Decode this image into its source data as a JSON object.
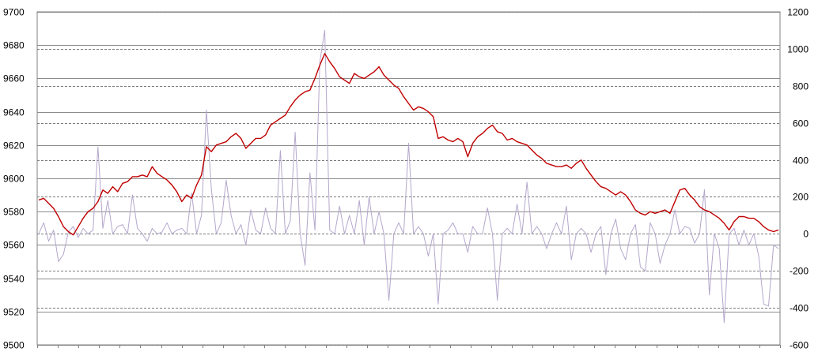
{
  "chart_data": {
    "type": "line",
    "title": "",
    "xlabel": "",
    "ylabel": "",
    "y_left": {
      "ylim": [
        9500,
        9700
      ],
      "ticks": [
        "9700",
        "9680",
        "9660",
        "9640",
        "9620",
        "9600",
        "9580",
        "9560",
        "9540",
        "9520",
        "9500"
      ]
    },
    "y_right": {
      "ylim": [
        -600,
        1200
      ],
      "ticks": [
        "1200",
        "1000",
        "800",
        "600",
        "400",
        "200",
        "0",
        "-200",
        "-400",
        "-600"
      ]
    },
    "grid": true,
    "legend": "none",
    "series": [
      {
        "axis": "left",
        "color": "#c00000",
        "points": [
          [
            0,
            9587
          ],
          [
            1,
            9588
          ],
          [
            2,
            9585
          ],
          [
            3,
            9582
          ],
          [
            4,
            9577
          ],
          [
            5,
            9571
          ],
          [
            6,
            9568
          ],
          [
            7,
            9566
          ],
          [
            8,
            9571
          ],
          [
            9,
            9576
          ],
          [
            10,
            9580
          ],
          [
            11,
            9582
          ],
          [
            12,
            9586
          ],
          [
            13,
            9593
          ],
          [
            14,
            9591
          ],
          [
            15,
            9595
          ],
          [
            16,
            9592
          ],
          [
            17,
            9597
          ],
          [
            18,
            9598
          ],
          [
            19,
            9601
          ],
          [
            20,
            9601
          ],
          [
            21,
            9602
          ],
          [
            22,
            9601
          ],
          [
            23,
            9607
          ],
          [
            24,
            9603
          ],
          [
            25,
            9601
          ],
          [
            26,
            9599
          ],
          [
            27,
            9596
          ],
          [
            28,
            9592
          ],
          [
            29,
            9586
          ],
          [
            30,
            9590
          ],
          [
            31,
            9588
          ],
          [
            32,
            9596
          ],
          [
            33,
            9602
          ],
          [
            34,
            9619
          ],
          [
            35,
            9616
          ],
          [
            36,
            9620
          ],
          [
            37,
            9621
          ],
          [
            38,
            9622
          ],
          [
            39,
            9625
          ],
          [
            40,
            9627
          ],
          [
            41,
            9624
          ],
          [
            42,
            9618
          ],
          [
            43,
            9621
          ],
          [
            44,
            9624
          ],
          [
            45,
            9624
          ],
          [
            46,
            9626
          ],
          [
            47,
            9632
          ],
          [
            48,
            9634
          ],
          [
            49,
            9636
          ],
          [
            50,
            9638
          ],
          [
            51,
            9643
          ],
          [
            52,
            9647
          ],
          [
            53,
            9650
          ],
          [
            54,
            9652
          ],
          [
            55,
            9653
          ],
          [
            56,
            9660
          ],
          [
            57,
            9668
          ],
          [
            58,
            9675
          ],
          [
            59,
            9670
          ],
          [
            60,
            9666
          ],
          [
            61,
            9661
          ],
          [
            62,
            9659
          ],
          [
            63,
            9657
          ],
          [
            64,
            9663
          ],
          [
            65,
            9661
          ],
          [
            66,
            9660
          ],
          [
            67,
            9662
          ],
          [
            68,
            9664
          ],
          [
            69,
            9667
          ],
          [
            70,
            9662
          ],
          [
            71,
            9659
          ],
          [
            72,
            9656
          ],
          [
            73,
            9654
          ],
          [
            74,
            9649
          ],
          [
            75,
            9645
          ],
          [
            76,
            9641
          ],
          [
            77,
            9643
          ],
          [
            78,
            9642
          ],
          [
            79,
            9640
          ],
          [
            80,
            9637
          ],
          [
            81,
            9624
          ],
          [
            82,
            9625
          ],
          [
            83,
            9623
          ],
          [
            84,
            9622
          ],
          [
            85,
            9624
          ],
          [
            86,
            9622
          ],
          [
            87,
            9613
          ],
          [
            88,
            9621
          ],
          [
            89,
            9625
          ],
          [
            90,
            9627
          ],
          [
            91,
            9630
          ],
          [
            92,
            9632
          ],
          [
            93,
            9628
          ],
          [
            94,
            9627
          ],
          [
            95,
            9623
          ],
          [
            96,
            9624
          ],
          [
            97,
            9622
          ],
          [
            98,
            9621
          ],
          [
            99,
            9620
          ],
          [
            100,
            9617
          ],
          [
            101,
            9614
          ],
          [
            102,
            9612
          ],
          [
            103,
            9609
          ],
          [
            104,
            9608
          ],
          [
            105,
            9607
          ],
          [
            106,
            9607
          ],
          [
            107,
            9608
          ],
          [
            108,
            9606
          ],
          [
            109,
            9609
          ],
          [
            110,
            9611
          ],
          [
            111,
            9606
          ],
          [
            112,
            9602
          ],
          [
            113,
            9598
          ],
          [
            114,
            9595
          ],
          [
            115,
            9594
          ],
          [
            116,
            9592
          ],
          [
            117,
            9590
          ],
          [
            118,
            9592
          ],
          [
            119,
            9590
          ],
          [
            120,
            9586
          ],
          [
            121,
            9581
          ],
          [
            122,
            9579
          ],
          [
            123,
            9578
          ],
          [
            124,
            9580
          ],
          [
            125,
            9579
          ],
          [
            126,
            9580
          ],
          [
            127,
            9581
          ],
          [
            128,
            9579
          ],
          [
            129,
            9586
          ],
          [
            130,
            9593
          ],
          [
            131,
            9594
          ],
          [
            132,
            9590
          ],
          [
            133,
            9587
          ],
          [
            134,
            9583
          ],
          [
            135,
            9581
          ],
          [
            136,
            9580
          ],
          [
            137,
            9578
          ],
          [
            138,
            9576
          ],
          [
            139,
            9573
          ],
          [
            140,
            9569
          ],
          [
            141,
            9574
          ],
          [
            142,
            9577
          ],
          [
            143,
            9577
          ],
          [
            144,
            9576
          ],
          [
            145,
            9576
          ],
          [
            146,
            9574
          ],
          [
            147,
            9571
          ],
          [
            148,
            9569
          ],
          [
            149,
            9568
          ],
          [
            150,
            9569
          ]
        ]
      },
      {
        "axis": "right",
        "color": "#b4a7cc",
        "points": [
          [
            0,
            0
          ],
          [
            1,
            60
          ],
          [
            2,
            -40
          ],
          [
            3,
            20
          ],
          [
            4,
            -150
          ],
          [
            5,
            -110
          ],
          [
            6,
            10
          ],
          [
            7,
            40
          ],
          [
            8,
            -20
          ],
          [
            9,
            30
          ],
          [
            10,
            0
          ],
          [
            11,
            20
          ],
          [
            12,
            470
          ],
          [
            13,
            30
          ],
          [
            14,
            180
          ],
          [
            15,
            0
          ],
          [
            16,
            40
          ],
          [
            17,
            50
          ],
          [
            18,
            0
          ],
          [
            19,
            210
          ],
          [
            20,
            30
          ],
          [
            21,
            0
          ],
          [
            22,
            -40
          ],
          [
            23,
            30
          ],
          [
            24,
            0
          ],
          [
            25,
            10
          ],
          [
            26,
            60
          ],
          [
            27,
            0
          ],
          [
            28,
            20
          ],
          [
            29,
            30
          ],
          [
            30,
            0
          ],
          [
            31,
            220
          ],
          [
            32,
            0
          ],
          [
            33,
            100
          ],
          [
            34,
            670
          ],
          [
            35,
            240
          ],
          [
            36,
            0
          ],
          [
            37,
            60
          ],
          [
            38,
            290
          ],
          [
            39,
            100
          ],
          [
            40,
            0
          ],
          [
            41,
            50
          ],
          [
            42,
            -60
          ],
          [
            43,
            130
          ],
          [
            44,
            20
          ],
          [
            45,
            0
          ],
          [
            46,
            140
          ],
          [
            47,
            30
          ],
          [
            48,
            0
          ],
          [
            49,
            450
          ],
          [
            50,
            0
          ],
          [
            51,
            70
          ],
          [
            52,
            550
          ],
          [
            53,
            0
          ],
          [
            54,
            -170
          ],
          [
            55,
            330
          ],
          [
            56,
            20
          ],
          [
            57,
            930
          ],
          [
            58,
            1100
          ],
          [
            59,
            20
          ],
          [
            60,
            0
          ],
          [
            61,
            150
          ],
          [
            62,
            0
          ],
          [
            63,
            100
          ],
          [
            64,
            0
          ],
          [
            65,
            180
          ],
          [
            66,
            -60
          ],
          [
            67,
            200
          ],
          [
            68,
            0
          ],
          [
            69,
            120
          ],
          [
            70,
            0
          ],
          [
            71,
            -360
          ],
          [
            72,
            0
          ],
          [
            73,
            60
          ],
          [
            74,
            0
          ],
          [
            75,
            490
          ],
          [
            76,
            0
          ],
          [
            77,
            40
          ],
          [
            78,
            0
          ],
          [
            79,
            -120
          ],
          [
            80,
            0
          ],
          [
            81,
            -380
          ],
          [
            82,
            0
          ],
          [
            83,
            20
          ],
          [
            84,
            60
          ],
          [
            85,
            0
          ],
          [
            86,
            0
          ],
          [
            87,
            -100
          ],
          [
            88,
            40
          ],
          [
            89,
            0
          ],
          [
            90,
            0
          ],
          [
            91,
            140
          ],
          [
            92,
            0
          ],
          [
            93,
            -360
          ],
          [
            94,
            0
          ],
          [
            95,
            30
          ],
          [
            96,
            0
          ],
          [
            97,
            160
          ],
          [
            98,
            0
          ],
          [
            99,
            280
          ],
          [
            100,
            0
          ],
          [
            101,
            40
          ],
          [
            102,
            0
          ],
          [
            103,
            -80
          ],
          [
            104,
            0
          ],
          [
            105,
            60
          ],
          [
            106,
            0
          ],
          [
            107,
            150
          ],
          [
            108,
            -140
          ],
          [
            109,
            0
          ],
          [
            110,
            30
          ],
          [
            111,
            0
          ],
          [
            112,
            -100
          ],
          [
            113,
            0
          ],
          [
            114,
            40
          ],
          [
            115,
            -220
          ],
          [
            116,
            0
          ],
          [
            117,
            80
          ],
          [
            118,
            -80
          ],
          [
            119,
            -140
          ],
          [
            120,
            0
          ],
          [
            121,
            50
          ],
          [
            122,
            -180
          ],
          [
            123,
            -200
          ],
          [
            124,
            60
          ],
          [
            125,
            0
          ],
          [
            126,
            -160
          ],
          [
            127,
            -60
          ],
          [
            128,
            0
          ],
          [
            129,
            130
          ],
          [
            130,
            0
          ],
          [
            131,
            40
          ],
          [
            132,
            30
          ],
          [
            133,
            -50
          ],
          [
            134,
            0
          ],
          [
            135,
            240
          ],
          [
            136,
            -330
          ],
          [
            137,
            0
          ],
          [
            138,
            -80
          ],
          [
            139,
            -480
          ],
          [
            140,
            0
          ],
          [
            141,
            30
          ],
          [
            142,
            -60
          ],
          [
            143,
            20
          ],
          [
            144,
            -60
          ],
          [
            145,
            0
          ],
          [
            146,
            -120
          ],
          [
            147,
            -380
          ],
          [
            148,
            -390
          ],
          [
            149,
            -60
          ],
          [
            150,
            -80
          ]
        ]
      }
    ]
  }
}
